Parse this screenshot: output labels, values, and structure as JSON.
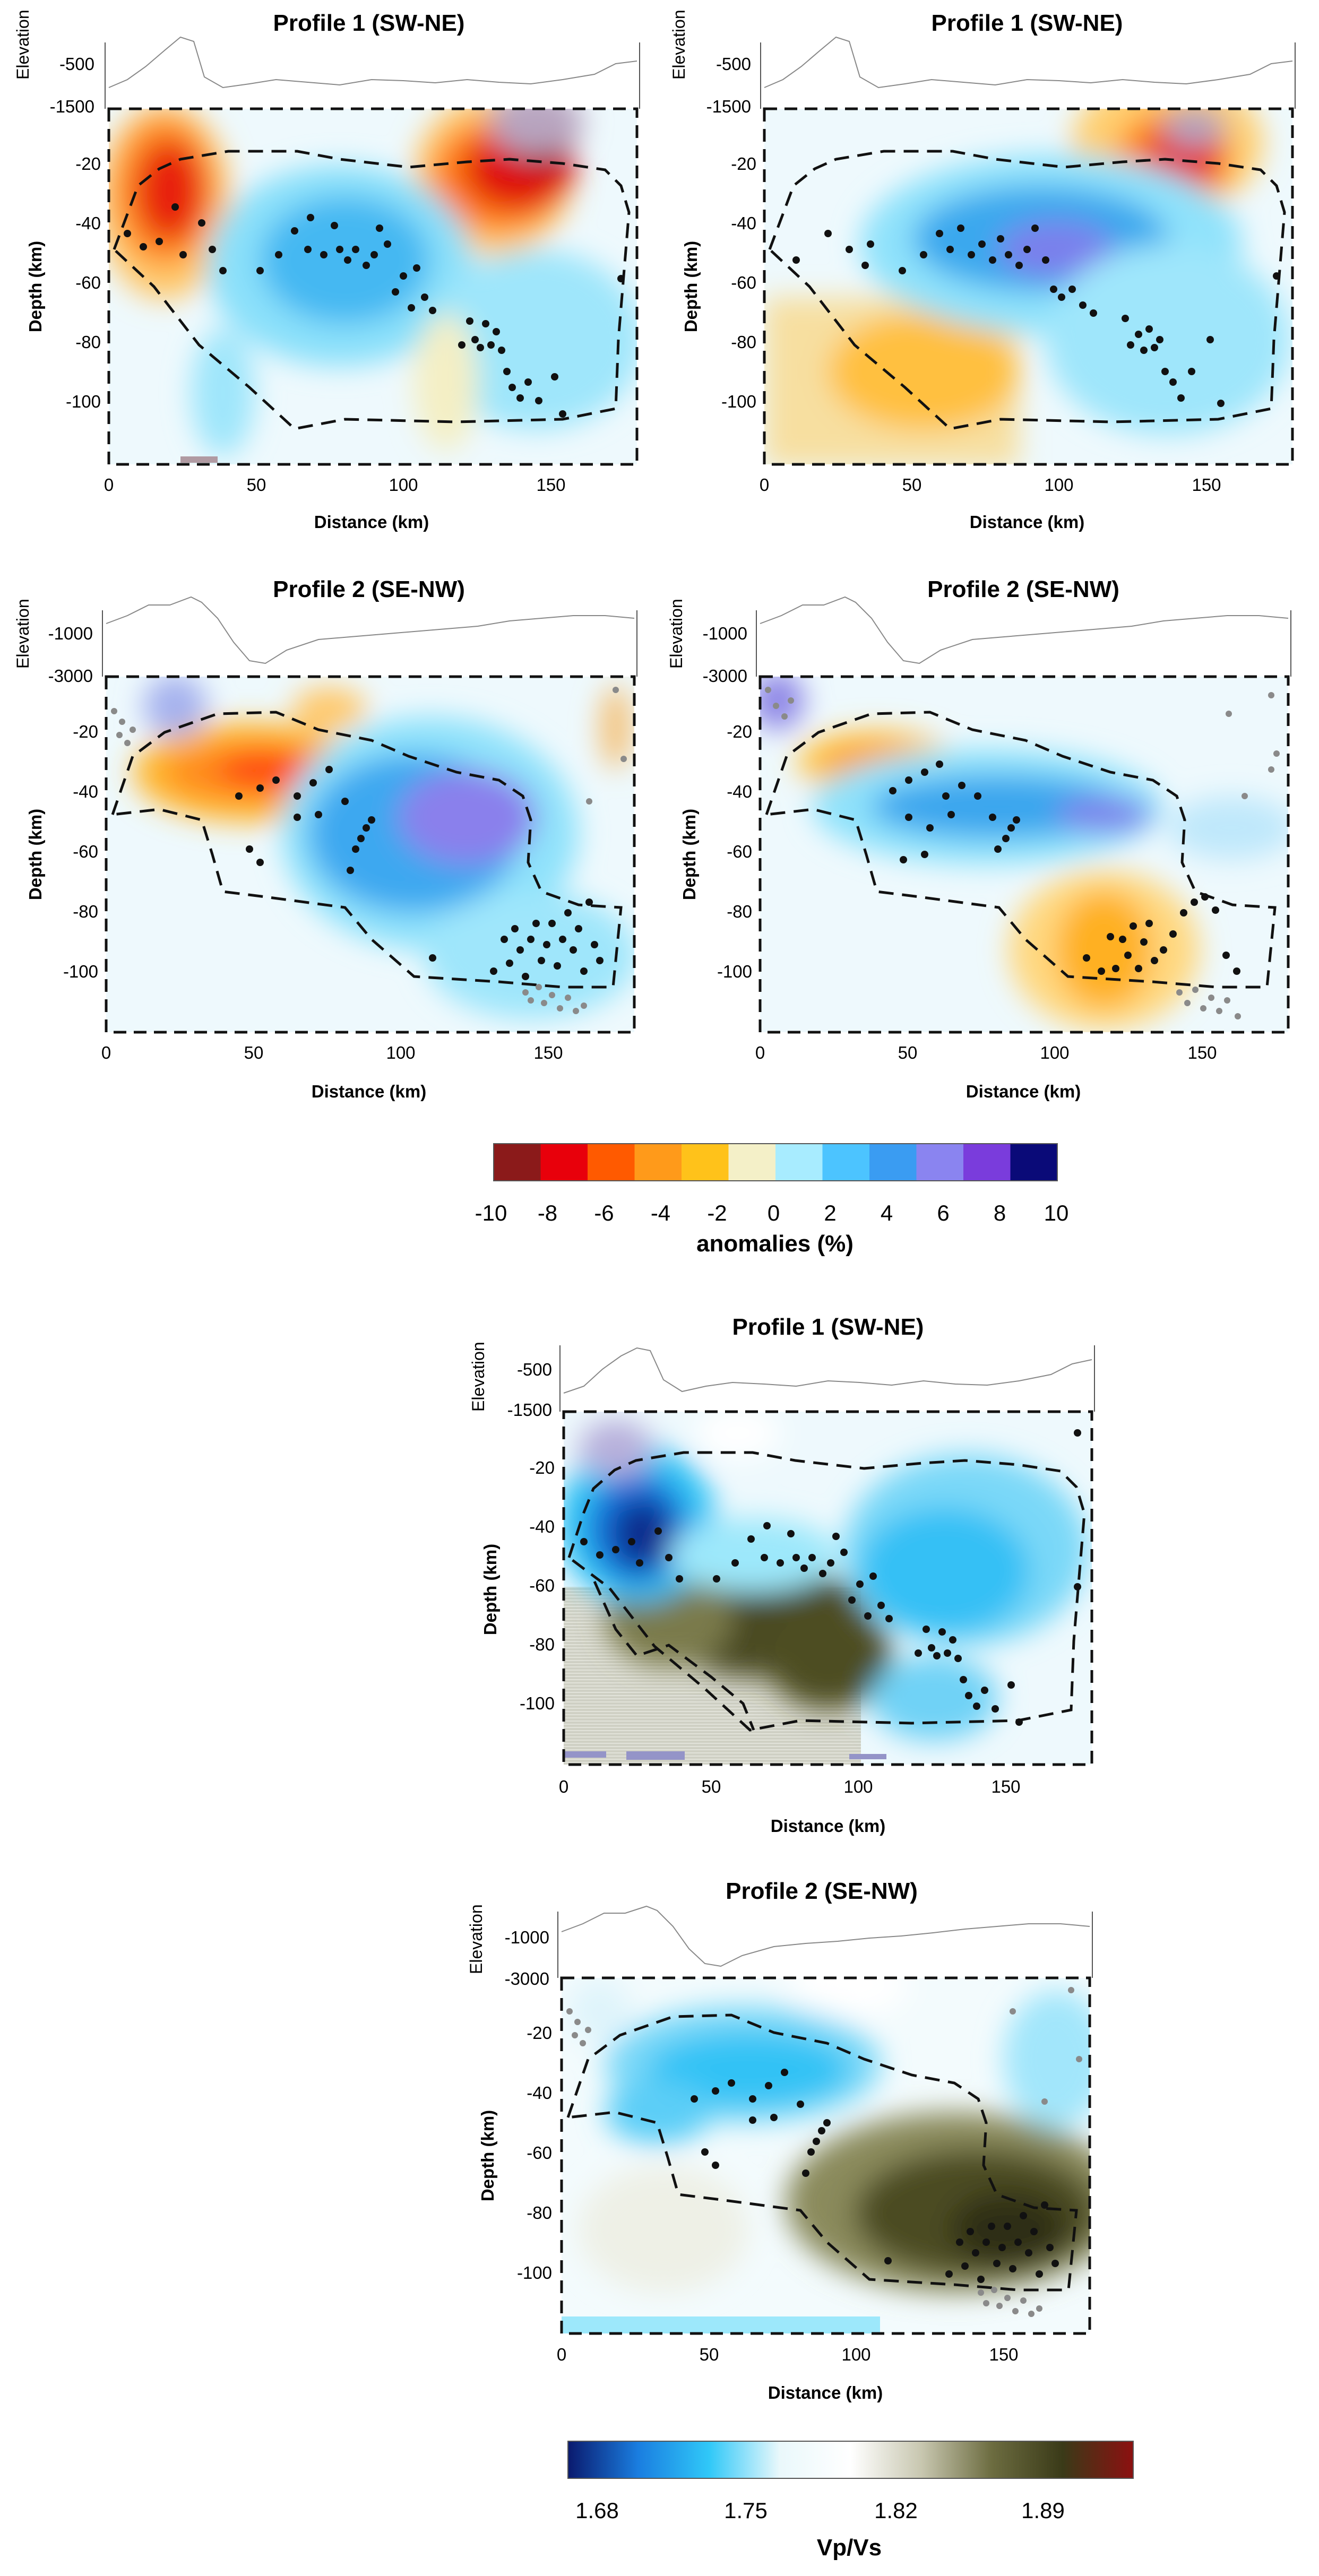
{
  "figure": {
    "panels": [
      {
        "id": "p1-vp",
        "title": "Profile 1 (SW-NE)",
        "elevation_label": "Elevation",
        "elevation_ticks": [
          "-500",
          "-1500"
        ],
        "depth_label": "Depth (km)",
        "depth_ticks": [
          "-20",
          "-40",
          "-60",
          "-80",
          "-100"
        ],
        "distance_label": "Distance (km)",
        "distance_ticks": [
          "0",
          "50",
          "100",
          "150"
        ]
      },
      {
        "id": "p1-vs",
        "title": "Profile 1 (SW-NE)",
        "elevation_label": "Elevation",
        "elevation_ticks": [
          "-500",
          "-1500"
        ],
        "depth_label": "Depth (km)",
        "depth_ticks": [
          "-20",
          "-40",
          "-60",
          "-80",
          "-100"
        ],
        "distance_label": "Distance (km)",
        "distance_ticks": [
          "0",
          "50",
          "100",
          "150"
        ]
      },
      {
        "id": "p2-vp",
        "title": "Profile 2 (SE-NW)",
        "elevation_label": "Elevation",
        "elevation_ticks": [
          "-1000",
          "-3000"
        ],
        "depth_label": "Depth (km)",
        "depth_ticks": [
          "-20",
          "-40",
          "-60",
          "-80",
          "-100"
        ],
        "distance_label": "Distance (km)",
        "distance_ticks": [
          "0",
          "50",
          "100",
          "150"
        ]
      },
      {
        "id": "p2-vs",
        "title": "Profile 2 (SE-NW)",
        "elevation_label": "Elevation",
        "elevation_ticks": [
          "-1000",
          "-3000"
        ],
        "depth_label": "Depth (km)",
        "depth_ticks": [
          "-20",
          "-40",
          "-60",
          "-80",
          "-100"
        ],
        "distance_label": "Distance (km)",
        "distance_ticks": [
          "0",
          "50",
          "100",
          "150"
        ]
      },
      {
        "id": "p1-vpvs",
        "title": "Profile 1 (SW-NE)",
        "elevation_label": "Elevation",
        "elevation_ticks": [
          "-500",
          "-1500"
        ],
        "depth_label": "Depth (km)",
        "depth_ticks": [
          "-20",
          "-40",
          "-60",
          "-80",
          "-100"
        ],
        "distance_label": "Distance (km)",
        "distance_ticks": [
          "0",
          "50",
          "100",
          "150"
        ]
      },
      {
        "id": "p2-vpvs",
        "title": "Profile 2 (SE-NW)",
        "elevation_label": "Elevation",
        "elevation_ticks": [
          "-1000",
          "-3000"
        ],
        "depth_label": "Depth (km)",
        "depth_ticks": [
          "-20",
          "-40",
          "-60",
          "-80",
          "-100"
        ],
        "distance_label": "Distance (km)",
        "distance_ticks": [
          "0",
          "50",
          "100",
          "150"
        ]
      }
    ],
    "anomaly_colorbar": {
      "title": "anomalies (%)",
      "tick_labels": [
        "-10",
        "-8",
        "-6",
        "-4",
        "-2",
        "0",
        "2",
        "4",
        "6",
        "8",
        "10"
      ],
      "colors": [
        "#8b1a1a",
        "#e8000b",
        "#ff5a00",
        "#ff9a1a",
        "#ffc21a",
        "#f4f0c8",
        "#a8ecff",
        "#4cc4ff",
        "#3a9cf2",
        "#8a84f0",
        "#7a3cdc",
        "#0a0a78"
      ]
    },
    "vpvs_colorbar": {
      "title": "Vp/Vs",
      "tick_labels": [
        "1.68",
        "1.75",
        "1.82",
        "1.89"
      ],
      "colors": [
        "#0a1a6e",
        "#1a7ee0",
        "#30c8f8",
        "#eaf8fb",
        "#ffffff",
        "#c8c7b0",
        "#6c6c40",
        "#3a3a18",
        "#8c1010"
      ]
    }
  }
}
